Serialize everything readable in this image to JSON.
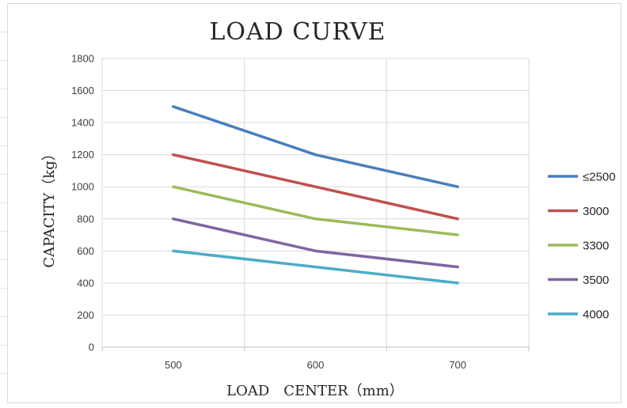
{
  "chart_data": {
    "type": "line",
    "title": "LOAD CURVE",
    "xlabel": "LOAD　CENTER（mm）",
    "ylabel": "CAPACITY（kg）",
    "categories": [
      "500",
      "600",
      "700"
    ],
    "ylim": [
      0,
      1800
    ],
    "yticks": [
      0,
      200,
      400,
      600,
      800,
      1000,
      1200,
      1400,
      1600,
      1800
    ],
    "grid": true,
    "legend_position": "right",
    "series": [
      {
        "name": "≤2500",
        "values": [
          1500,
          1200,
          1000
        ],
        "color": "#4a7ebb"
      },
      {
        "name": "3000",
        "values": [
          1200,
          1000,
          800
        ],
        "color": "#c0504d"
      },
      {
        "name": "3300",
        "values": [
          1000,
          800,
          700
        ],
        "color": "#9bbb59"
      },
      {
        "name": "3500",
        "values": [
          800,
          600,
          500
        ],
        "color": "#8064a2"
      },
      {
        "name": "4000",
        "values": [
          600,
          500,
          400
        ],
        "color": "#4bacc6"
      }
    ]
  }
}
